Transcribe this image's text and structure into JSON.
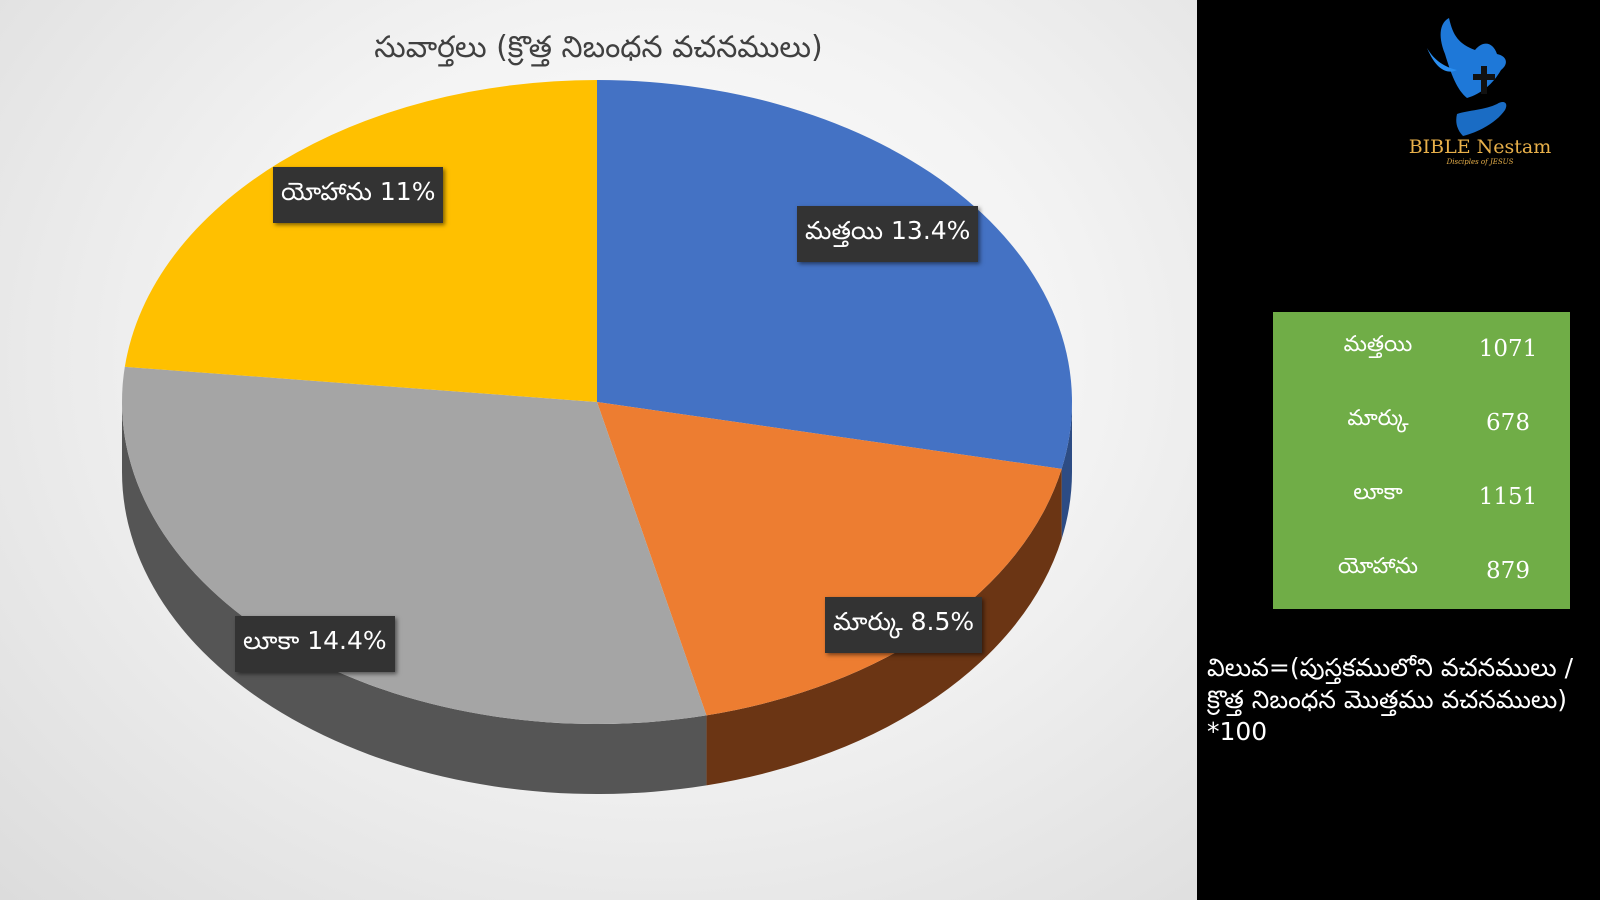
{
  "chart_data": {
    "type": "pie",
    "title": "సువార్తలు (క్రొత్త నిబంధన వచనములు)",
    "slices": [
      {
        "label": "మత్తయి",
        "percent_label": "13.4%",
        "value": 13.4,
        "color": "#4472c4",
        "side": "#2d4c84"
      },
      {
        "label": "మార్కు",
        "percent_label": "8.5%",
        "value": 8.5,
        "color": "#ed7d31",
        "side": "#6b3514"
      },
      {
        "label": "లూకా",
        "percent_label": "14.4%",
        "value": 14.4,
        "color": "#a5a5a5",
        "side": "#555555"
      },
      {
        "label": "యోహాను",
        "percent_label": "11%",
        "value": 11,
        "color": "#ffc000",
        "side": "#8a6800"
      }
    ]
  },
  "logo": {
    "name": "BIBLE Nestam",
    "tagline": "Disciples of JESUS",
    "icon": "dove-cross-hand-icon"
  },
  "table": {
    "rows": [
      {
        "name": "మత్తయి",
        "value": "1071"
      },
      {
        "name": "మార్కు",
        "value": "678"
      },
      {
        "name": "లూకా",
        "value": "1151"
      },
      {
        "name": "యోహాను",
        "value": "879"
      }
    ]
  },
  "formula": {
    "line1": "విలువ=(పుస్తకములోని వచనములు /",
    "line2": "క్రొత్త నిబంధన మొత్తము వచనములు)",
    "line3": "*100"
  }
}
